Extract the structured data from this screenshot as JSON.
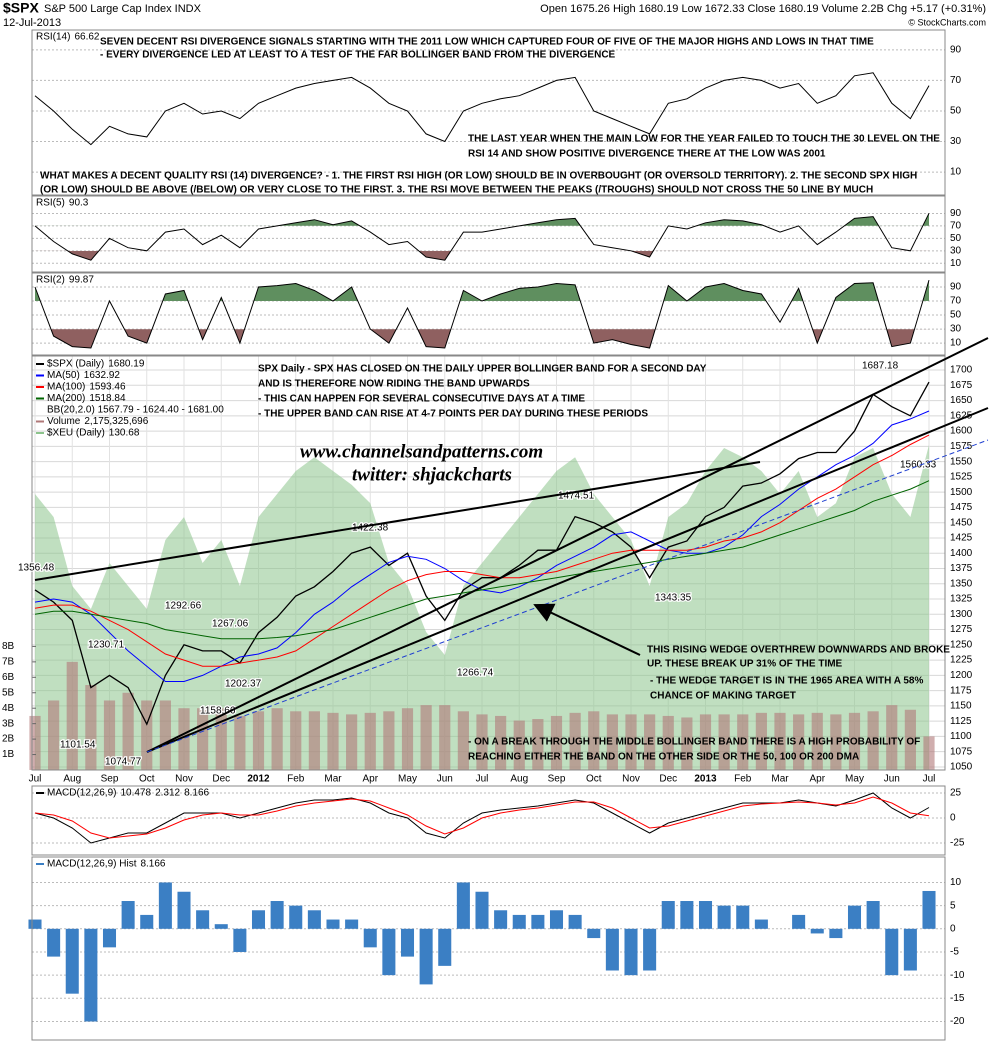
{
  "header": {
    "symbol": "$SPX",
    "name": "S&P 500 Large Cap Index INDX",
    "date": "12-Jul-2013",
    "quote": "Open 1675.26 High 1680.19 Low 1672.33 Close 1680.19 Volume 2.2B Chg +5.17 (+0.31%)",
    "credit": "© StockCharts.com"
  },
  "chart_data": [
    {
      "type": "line",
      "title": "RSI(14)",
      "ylim": [
        -5,
        103
      ],
      "yticks": [
        10,
        30,
        50,
        70,
        90
      ],
      "series": [
        {
          "name": "RSI(14)",
          "color": "#000000",
          "values": [
            60,
            50,
            38,
            28,
            40,
            35,
            33,
            50,
            55,
            48,
            50,
            45,
            55,
            60,
            65,
            68,
            70,
            72,
            65,
            55,
            50,
            35,
            30,
            50,
            55,
            58,
            60,
            65,
            70,
            72,
            50,
            45,
            40,
            35,
            55,
            58,
            65,
            70,
            72,
            70,
            65,
            68,
            55,
            60,
            73,
            75,
            55,
            45,
            66.62
          ]
        }
      ],
      "notes": [
        "SEVEN DECENT RSI DIVERGENCE SIGNALS STARTING WITH THE 2011 LOW WHICH CAPTURED FOUR OF FIVE OF THE MAJOR HIGHS AND LOWS IN THAT TIME",
        "- EVERY DIVERGENCE LED AT LEAST TO A TEST OF THE FAR BOLLINGER BAND FROM THE DIVERGENCE",
        "THE LAST YEAR WHEN THE MAIN LOW FOR THE YEAR FAILED TO TOUCH THE 30 LEVEL ON THE",
        "RSI 14 AND SHOW POSITIVE DIVERGENCE THERE AT THE LOW WAS 2001",
        "WHAT MAKES A DECENT QUALITY RSI (14) DIVERGENCE? - 1. THE FIRST RSI HIGH (OR LOW) SHOULD BE IN OVERBOUGHT (OR OVERSOLD TERRITORY). 2. THE SECOND SPX HIGH",
        "(OR LOW) SHOULD BE ABOVE (/BELOW) OR VERY CLOSE TO THE FIRST. 3. THE RSI MOVE BETWEEN THE PEAKS (/TROUGHS) SHOULD NOT CROSS THE 50 LINE BY MUCH"
      ]
    },
    {
      "type": "line",
      "title": "RSI(5)",
      "ylim": [
        -4,
        118
      ],
      "yticks": [
        10,
        30,
        50,
        70,
        90
      ],
      "overbought": 70,
      "oversold": 30,
      "overbought_color": "#5f8f5f",
      "oversold_color": "#8f6060",
      "series": [
        {
          "name": "RSI(5)",
          "color": "#000000",
          "values": [
            70,
            45,
            25,
            15,
            50,
            35,
            30,
            60,
            65,
            40,
            55,
            35,
            65,
            70,
            75,
            80,
            72,
            78,
            60,
            40,
            45,
            20,
            15,
            60,
            60,
            65,
            70,
            75,
            80,
            82,
            40,
            35,
            30,
            20,
            70,
            65,
            75,
            80,
            78,
            72,
            60,
            70,
            40,
            60,
            82,
            85,
            35,
            30,
            90.3
          ]
        }
      ]
    },
    {
      "type": "line",
      "title": "RSI(2)",
      "ylim": [
        -7,
        110
      ],
      "yticks": [
        10,
        30,
        50,
        70,
        90
      ],
      "overbought": 70,
      "oversold": 30,
      "overbought_color": "#5f8f5f",
      "oversold_color": "#8f6060",
      "series": [
        {
          "name": "RSI(2)",
          "color": "#000000",
          "values": [
            90,
            20,
            5,
            3,
            70,
            20,
            10,
            80,
            85,
            15,
            75,
            10,
            90,
            92,
            95,
            85,
            70,
            90,
            30,
            10,
            60,
            5,
            3,
            85,
            70,
            80,
            88,
            90,
            95,
            93,
            10,
            15,
            8,
            3,
            92,
            70,
            90,
            95,
            85,
            80,
            40,
            88,
            10,
            75,
            95,
            96,
            5,
            10,
            99.87
          ]
        }
      ]
    },
    {
      "type": "line",
      "title": "$SPX (Daily)",
      "ylim": [
        1045,
        1723
      ],
      "yticks": [
        1050,
        1075,
        1100,
        1125,
        1150,
        1175,
        1200,
        1225,
        1250,
        1275,
        1300,
        1325,
        1350,
        1375,
        1400,
        1425,
        1450,
        1475,
        1500,
        1525,
        1550,
        1575,
        1600,
        1625,
        1650,
        1675,
        1700
      ],
      "grid": true,
      "categories": [
        "Jul",
        null,
        "Aug",
        null,
        "Sep",
        null,
        "Oct",
        null,
        "Nov",
        null,
        "Dec",
        null,
        "2012",
        null,
        "Feb",
        null,
        "Mar",
        null,
        "Apr",
        null,
        "May",
        null,
        "Jun",
        null,
        "Jul",
        null,
        "Aug",
        null,
        "Sep",
        null,
        "Oct",
        null,
        "Nov",
        null,
        "Dec",
        null,
        "2013",
        null,
        "Feb",
        null,
        "Mar",
        null,
        "Apr",
        null,
        "May",
        null,
        "Jun",
        null,
        "Jul"
      ],
      "series": [
        {
          "name": "$SPX (Daily)",
          "color": "#000000",
          "values": [
            1340,
            1320,
            1290,
            1180,
            1200,
            1180,
            1120,
            1200,
            1250,
            1240,
            1240,
            1220,
            1270,
            1295,
            1330,
            1345,
            1370,
            1400,
            1410,
            1380,
            1400,
            1330,
            1290,
            1340,
            1360,
            1360,
            1380,
            1405,
            1405,
            1460,
            1450,
            1435,
            1410,
            1360,
            1410,
            1420,
            1460,
            1475,
            1510,
            1515,
            1530,
            1555,
            1565,
            1565,
            1600,
            1660,
            1640,
            1625,
            1680.19
          ]
        },
        {
          "name": "MA(50)",
          "color": "#0000ff",
          "values": [
            1320,
            1325,
            1320,
            1300,
            1270,
            1240,
            1215,
            1190,
            1190,
            1200,
            1215,
            1230,
            1235,
            1245,
            1270,
            1300,
            1320,
            1345,
            1365,
            1385,
            1395,
            1390,
            1375,
            1355,
            1340,
            1335,
            1345,
            1360,
            1380,
            1395,
            1410,
            1430,
            1435,
            1420,
            1405,
            1400,
            1400,
            1410,
            1430,
            1460,
            1480,
            1505,
            1525,
            1545,
            1560,
            1580,
            1610,
            1620,
            1632.92
          ]
        },
        {
          "name": "MA(100)",
          "color": "#ff0000",
          "values": [
            1310,
            1315,
            1315,
            1305,
            1290,
            1275,
            1255,
            1235,
            1225,
            1215,
            1215,
            1220,
            1225,
            1230,
            1240,
            1260,
            1280,
            1300,
            1320,
            1340,
            1355,
            1365,
            1370,
            1370,
            1365,
            1360,
            1360,
            1365,
            1370,
            1380,
            1390,
            1400,
            1405,
            1405,
            1405,
            1405,
            1410,
            1420,
            1425,
            1435,
            1450,
            1470,
            1490,
            1505,
            1525,
            1545,
            1560,
            1578,
            1593.46
          ]
        },
        {
          "name": "MA(200)",
          "color": "#006400",
          "values": [
            1300,
            1305,
            1305,
            1300,
            1295,
            1290,
            1285,
            1275,
            1270,
            1265,
            1260,
            1260,
            1260,
            1262,
            1265,
            1270,
            1275,
            1285,
            1295,
            1305,
            1315,
            1325,
            1330,
            1335,
            1340,
            1345,
            1350,
            1355,
            1360,
            1365,
            1370,
            1375,
            1380,
            1385,
            1390,
            1395,
            1400,
            1405,
            1410,
            1420,
            1430,
            1440,
            1450,
            1460,
            1470,
            1485,
            1495,
            1505,
            1518.84
          ]
        }
      ],
      "bb_legend": "BB(20,2.0) 1567.79 - 1624.40 - 1681.00",
      "volume": {
        "name": "Volume",
        "color": "#b07878",
        "last_label": "2,175,325,696",
        "ylim": [
          0,
          26800000000
        ],
        "yticks": [
          {
            "value": 1000000000,
            "label": "1B"
          },
          {
            "value": 2000000000,
            "label": "2B"
          },
          {
            "value": 3000000000,
            "label": "3B"
          },
          {
            "value": 4000000000,
            "label": "4B"
          },
          {
            "value": 5000000000,
            "label": "5B"
          },
          {
            "value": 6000000000,
            "label": "6B"
          },
          {
            "value": 7000000000,
            "label": "7B"
          },
          {
            "value": 8000000000,
            "label": "8B"
          }
        ],
        "values": [
          3500000000.0,
          4500000000.0,
          7000000000.0,
          5500000000.0,
          4500000000.0,
          5000000000.0,
          4500000000.0,
          4500000000.0,
          4000000000.0,
          4000000000.0,
          4000000000.0,
          3500000000.0,
          3800000000.0,
          4000000000.0,
          3800000000.0,
          3800000000.0,
          3700000000.0,
          3600000000.0,
          3700000000.0,
          3800000000.0,
          4000000000.0,
          4200000000.0,
          4200000000.0,
          3800000000.0,
          3600000000.0,
          3500000000.0,
          3200000000.0,
          3300000000.0,
          3500000000.0,
          3700000000.0,
          3800000000.0,
          3600000000.0,
          3600000000.0,
          3600000000.0,
          3500000000.0,
          3400000000.0,
          3600000000.0,
          3600000000.0,
          3600000000.0,
          3700000000.0,
          3700000000.0,
          3600000000.0,
          3700000000.0,
          3600000000.0,
          3700000000.0,
          3800000000.0,
          4200000000.0,
          3900000000.0,
          2175325696
        ]
      },
      "xeu": {
        "name": "$XEU (Daily)",
        "color": "#8cc48c",
        "ylim": [
          60,
          150
        ],
        "values": [
          120,
          115,
          100,
          95,
          105,
          100,
          95,
          110,
          115,
          105,
          110,
          100,
          115,
          120,
          125,
          128,
          125,
          122,
          118,
          105,
          100,
          90,
          85,
          100,
          105,
          110,
          115,
          120,
          125,
          128,
          120,
          115,
          110,
          100,
          115,
          118,
          125,
          130,
          128,
          125,
          120,
          125,
          115,
          118,
          128,
          130,
          120,
          115,
          130.68
        ]
      },
      "price_labels": [
        1356.48,
        1101.54,
        1074.77,
        1230.71,
        1292.66,
        1267.06,
        1202.37,
        1158.66,
        1422.38,
        1266.74,
        1474.51,
        1343.35,
        1687.18,
        1560.33
      ],
      "notes": [
        "SPX Daily - SPX HAS CLOSED ON THE DAILY UPPER BOLLINGER BAND FOR A SECOND DAY",
        "AND IS THEREFORE NOW RIDING THE BAND UPWARDS",
        "- THIS CAN HAPPEN FOR SEVERAL CONSECUTIVE DAYS AT A TIME",
        "- THE UPPER BAND CAN RISE AT 4-7 POINTS PER DAY DURING THESE PERIODS",
        "www.channelsandpatterns.com",
        "twitter: shjackcharts",
        "THIS RISING WEDGE OVERTHREW DOWNWARDS AND BROKE",
        "UP. THESE BREAK UP 31% OF THE TIME",
        "- THE WEDGE TARGET IS IN THE 1965 AREA WITH A 58%",
        "CHANCE OF MAKING TARGET",
        "- ON A BREAK THROUGH THE MIDDLE BOLLINGER BAND THERE IS A HIGH PROBABILITY OF",
        "REACHING EITHER THE BAND ON THE OTHER SIDE OR THE 50, 100 OR 200 DMA"
      ]
    },
    {
      "type": "line",
      "title": "MACD(12,26,9)",
      "ylim": [
        -37,
        32
      ],
      "yticks": [
        -25,
        0,
        25
      ],
      "series": [
        {
          "name": "MACD",
          "color": "#000000",
          "values": [
            5,
            0,
            -10,
            -25,
            -20,
            -15,
            -15,
            -5,
            5,
            5,
            5,
            0,
            5,
            10,
            15,
            18,
            18,
            20,
            15,
            5,
            0,
            -15,
            -20,
            -5,
            5,
            8,
            10,
            12,
            15,
            18,
            15,
            5,
            -5,
            -15,
            -5,
            0,
            5,
            10,
            15,
            15,
            15,
            18,
            15,
            12,
            18,
            25,
            10,
            0,
            10.478
          ]
        },
        {
          "name": "Signal",
          "color": "#ff0000",
          "values": [
            5,
            3,
            -3,
            -15,
            -20,
            -18,
            -16,
            -10,
            -2,
            3,
            5,
            3,
            3,
            7,
            12,
            15,
            17,
            19,
            17,
            10,
            3,
            -8,
            -16,
            -10,
            0,
            5,
            8,
            10,
            13,
            16,
            16,
            10,
            0,
            -10,
            -8,
            -3,
            2,
            7,
            12,
            14,
            15,
            16,
            15,
            13,
            15,
            21,
            15,
            5,
            2.312
          ]
        }
      ]
    },
    {
      "type": "bar",
      "title": "MACD(12,26,9) Hist",
      "ylim": [
        -24,
        15.5
      ],
      "yticks": [
        -20,
        -15,
        -10,
        -5,
        0,
        5,
        10
      ],
      "color": "#3b7fc4",
      "values": [
        2,
        -6,
        -14,
        -20,
        -4,
        6,
        3,
        10,
        8,
        4,
        1,
        -5,
        4,
        6,
        5,
        4,
        2,
        2,
        -4,
        -10,
        -6,
        -12,
        -8,
        10,
        8,
        4,
        3,
        3,
        4,
        3,
        -2,
        -9,
        -10,
        -9,
        6,
        6,
        6,
        5,
        5,
        2,
        0,
        3,
        -1,
        -2,
        5,
        6,
        -10,
        -9,
        8.166
      ]
    }
  ]
}
